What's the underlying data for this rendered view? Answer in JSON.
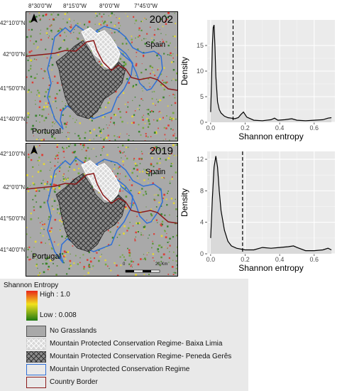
{
  "lon_labels": [
    "8°30'0\"W",
    "8°15'0\"W",
    "8°0'0\"W",
    "7°45'0\"W"
  ],
  "lat_labels": [
    "42°10'0\"N",
    "42°0'0\"N",
    "41°50'0\"N",
    "41°40'0\"N"
  ],
  "maps": [
    {
      "year": "2002",
      "country_north": "Spain",
      "country_south": "Portugal"
    },
    {
      "year": "2019",
      "country_north": "Spain",
      "country_south": "Portugal",
      "scale_label": "20 Km",
      "scale_zero": "0"
    }
  ],
  "icons": {
    "north": "north-arrow-icon"
  },
  "colors": {
    "unprotected": "#2f6fd6",
    "border": "#8b1a1a",
    "no_grasslands": "#a9a9a9",
    "entropy_high": "#e8261c",
    "entropy_mid": "#f2e21c",
    "entropy_low": "#1f7a12"
  },
  "legend": {
    "title": "Shannon Entropy",
    "high": "High : 1.0",
    "low": "Low : 0.008",
    "items": [
      "No Grasslands",
      "Mountain Protected Conservation Regime- Baixa Limia",
      "Mountain Protected Conservation Regime- Peneda Gerês",
      "Mountain Unprotected Conservation Regime",
      "Country Border"
    ]
  },
  "chart_data": [
    {
      "type": "area",
      "xlabel": "Shannon entropy",
      "ylabel": "Density",
      "xlim": [
        -0.02,
        0.72
      ],
      "ylim": [
        0,
        20
      ],
      "xticks": [
        0.0,
        0.2,
        0.4,
        0.6
      ],
      "xtick_labels": [
        "0.0",
        "0.2",
        "0.4",
        "0.6"
      ],
      "yticks": [
        0,
        5,
        10,
        15
      ],
      "ytick_labels": [
        "0",
        "5",
        "10",
        "15"
      ],
      "grid": true,
      "mean_line": 0.13,
      "x": [
        0.0,
        0.005,
        0.01,
        0.015,
        0.02,
        0.025,
        0.03,
        0.04,
        0.05,
        0.06,
        0.08,
        0.1,
        0.12,
        0.14,
        0.16,
        0.175,
        0.19,
        0.21,
        0.25,
        0.3,
        0.35,
        0.37,
        0.39,
        0.43,
        0.47,
        0.5,
        0.55,
        0.6,
        0.65,
        0.68,
        0.7
      ],
      "y": [
        2.0,
        8.0,
        15.0,
        18.5,
        19.0,
        15.0,
        9.0,
        4.0,
        2.5,
        1.8,
        1.2,
        0.9,
        0.8,
        0.7,
        0.9,
        1.5,
        2.0,
        1.0,
        0.4,
        0.3,
        0.5,
        0.8,
        0.4,
        0.5,
        0.7,
        0.4,
        0.3,
        0.4,
        0.5,
        0.8,
        0.9
      ]
    },
    {
      "type": "area",
      "xlabel": "Shannon entropy",
      "ylabel": "Density",
      "xlim": [
        -0.02,
        0.72
      ],
      "ylim": [
        0,
        13
      ],
      "xticks": [
        0.0,
        0.2,
        0.4,
        0.6
      ],
      "xtick_labels": [
        "0.0",
        "0.2",
        "0.4",
        "0.6"
      ],
      "yticks": [
        0,
        4,
        8,
        12
      ],
      "ytick_labels": [
        "0",
        "4",
        "8",
        "12"
      ],
      "grid": true,
      "mean_line": 0.185,
      "x": [
        0.0,
        0.01,
        0.02,
        0.03,
        0.04,
        0.05,
        0.06,
        0.08,
        0.1,
        0.12,
        0.15,
        0.2,
        0.25,
        0.3,
        0.35,
        0.4,
        0.45,
        0.48,
        0.5,
        0.55,
        0.6,
        0.65,
        0.68,
        0.7
      ],
      "y": [
        2.0,
        7.0,
        11.0,
        12.4,
        11.0,
        8.0,
        5.5,
        3.0,
        1.6,
        1.0,
        0.7,
        0.5,
        0.5,
        0.8,
        0.7,
        0.8,
        0.9,
        1.0,
        0.8,
        0.4,
        0.4,
        0.5,
        0.7,
        0.5
      ]
    }
  ]
}
